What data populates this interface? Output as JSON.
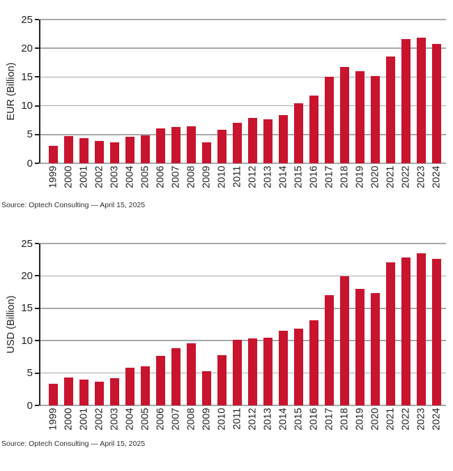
{
  "colors": {
    "bar": "#C8142E",
    "gridline": "#A8A8A8",
    "axis": "#231F20",
    "text": "#231F20",
    "source_text": "#2D2D2D"
  },
  "chart_data": [
    {
      "type": "bar",
      "title": "",
      "xlabel": "",
      "ylabel": "EUR (Billion)",
      "ylim": [
        0,
        25
      ],
      "yticks": [
        0,
        5,
        10,
        15,
        20,
        25
      ],
      "grid": true,
      "legend": "none",
      "categories": [
        "1999",
        "2000",
        "2001",
        "2002",
        "2003",
        "2004",
        "2005",
        "2006",
        "2007",
        "2008",
        "2009",
        "2010",
        "2011",
        "2012",
        "2013",
        "2014",
        "2015",
        "2016",
        "2017",
        "2018",
        "2019",
        "2020",
        "2021",
        "2022",
        "2023",
        "2024"
      ],
      "values": [
        3.1,
        4.7,
        4.4,
        3.9,
        3.6,
        4.6,
        4.8,
        6.1,
        6.3,
        6.4,
        3.7,
        5.8,
        7.0,
        7.9,
        7.7,
        8.4,
        10.5,
        11.8,
        15.0,
        16.7,
        16.0,
        15.2,
        18.6,
        21.6,
        21.9,
        20.8
      ],
      "source": "Source: Optech Consulting — April 15, 2025"
    },
    {
      "type": "bar",
      "title": "",
      "xlabel": "",
      "ylabel": "USD (Billion)",
      "ylim": [
        0,
        25
      ],
      "yticks": [
        0,
        5,
        10,
        15,
        20,
        25
      ],
      "grid": true,
      "legend": "none",
      "categories": [
        "1999",
        "2000",
        "2001",
        "2002",
        "2003",
        "2004",
        "2005",
        "2006",
        "2007",
        "2008",
        "2009",
        "2010",
        "2011",
        "2012",
        "2013",
        "2014",
        "2015",
        "2016",
        "2017",
        "2018",
        "2019",
        "2020",
        "2021",
        "2022",
        "2023",
        "2024"
      ],
      "values": [
        3.3,
        4.3,
        4.0,
        3.7,
        4.2,
        5.8,
        6.0,
        7.7,
        8.8,
        9.6,
        5.3,
        7.8,
        10.1,
        10.4,
        10.5,
        11.5,
        11.9,
        13.1,
        17.0,
        19.9,
        18.0,
        17.4,
        22.1,
        22.8,
        23.5,
        22.6
      ],
      "source": "Source: Optech Consulting — April 15, 2025"
    }
  ]
}
